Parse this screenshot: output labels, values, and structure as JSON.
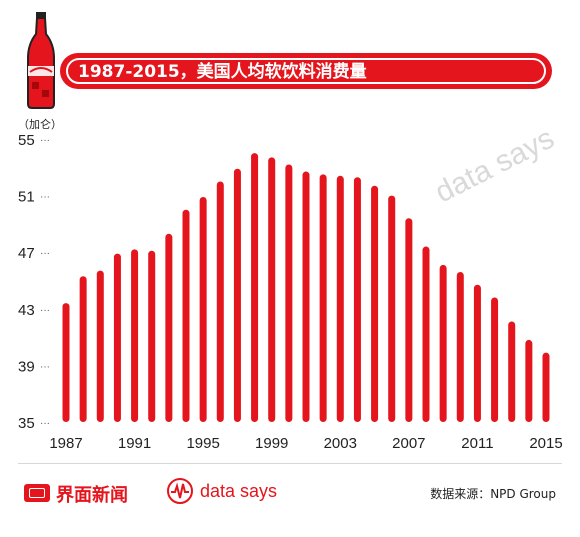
{
  "header": {
    "title": "1987-2015，美国人均软饮料消费量",
    "unit": "（加仑）"
  },
  "footer": {
    "brand": "界面新闻",
    "partner": "data says",
    "source": "数据来源：NPD Group"
  },
  "watermark": "data says",
  "colors": {
    "bar": "#e4151c",
    "accent": "#e4151c",
    "text": "#222222"
  },
  "chart_data": {
    "type": "bar",
    "categories": [
      "1987",
      "1988",
      "1989",
      "1990",
      "1991",
      "1992",
      "1993",
      "1994",
      "1995",
      "1996",
      "1997",
      "1998",
      "1999",
      "2000",
      "2001",
      "2002",
      "2003",
      "2004",
      "2005",
      "2006",
      "2007",
      "2008",
      "2009",
      "2010",
      "2011",
      "2012",
      "2013",
      "2014",
      "2015"
    ],
    "values": [
      43.4,
      45.3,
      45.7,
      46.9,
      47.2,
      47.1,
      48.3,
      50.0,
      50.9,
      52.0,
      52.9,
      54.0,
      53.7,
      53.2,
      52.7,
      52.5,
      52.4,
      52.3,
      51.7,
      51.0,
      49.4,
      47.4,
      46.1,
      45.6,
      44.7,
      43.8,
      42.1,
      40.8,
      39.9
    ],
    "yticks": [
      35,
      39,
      43,
      47,
      51,
      55
    ],
    "xticks": [
      "1987",
      "1991",
      "1995",
      "1999",
      "2003",
      "2007",
      "2011",
      "2015"
    ],
    "ylim": [
      35,
      55
    ],
    "title": "1987-2015，美国人均软饮料消费量",
    "ylabel": "（加仑）",
    "xlabel": ""
  }
}
